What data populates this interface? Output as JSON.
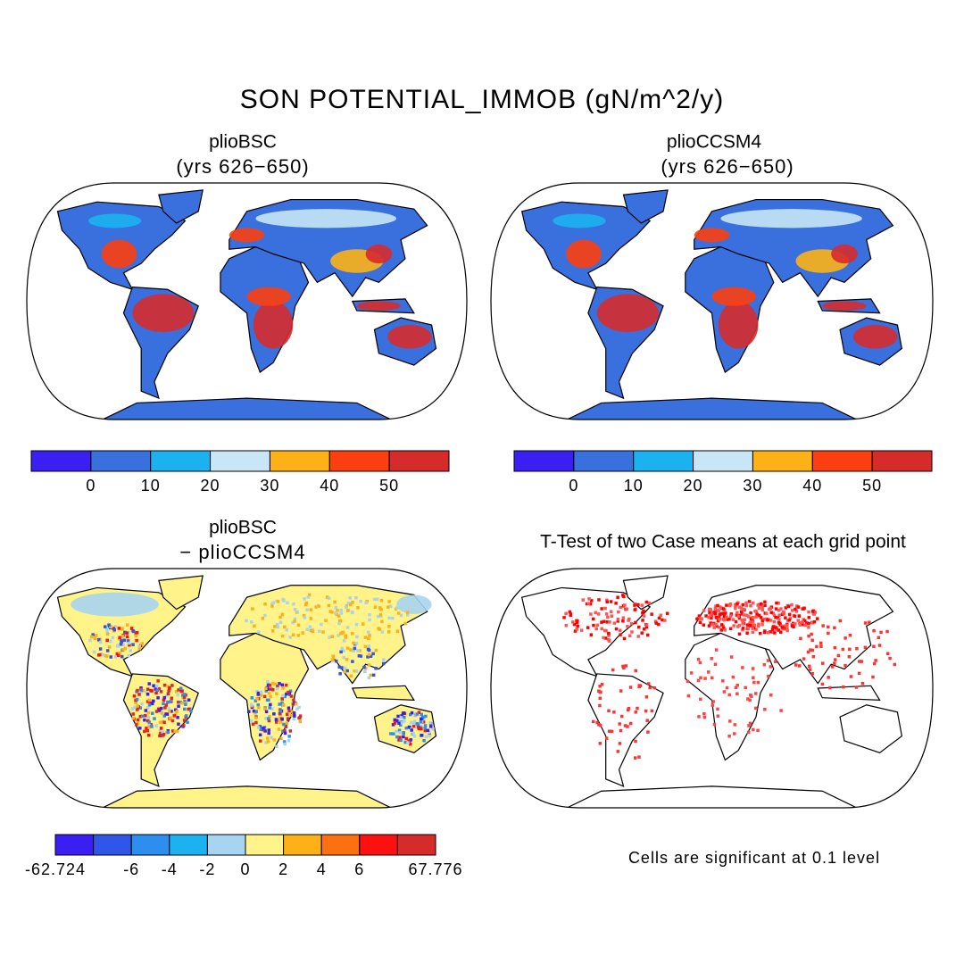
{
  "title": "SON POTENTIAL_IMMOB (gN/m^2/y)",
  "panels": [
    {
      "title": "plioBSC",
      "subtitle": "(yrs 626−650)"
    },
    {
      "title": "plioCCSM4",
      "subtitle": "(yrs 626−650)"
    },
    {
      "title": "plioBSC",
      "subtitle": "− plioCCSM4"
    },
    {
      "title": "T-Test of two Case means at each grid point"
    }
  ],
  "colorbars": [
    {
      "colors": [
        "#3b1ff2",
        "#3a6fde",
        "#1cb2f0",
        "#c8e6f5",
        "#fcb216",
        "#fc3f10",
        "#d62b2b"
      ],
      "ticks": [
        0,
        10,
        20,
        30,
        40,
        50
      ]
    },
    {
      "colors": [
        "#3b1ff2",
        "#3a6fde",
        "#1cb2f0",
        "#c8e6f5",
        "#fcb216",
        "#fc3f10",
        "#d62b2b"
      ],
      "ticks": [
        0,
        10,
        20,
        30,
        40,
        50
      ]
    },
    {
      "colors": [
        "#3b1ff2",
        "#2f56e8",
        "#2d8ef0",
        "#1cb2f0",
        "#a7d4f0",
        "#fff38a",
        "#fcb216",
        "#fc7010",
        "#fc1010",
        "#d62b2b"
      ],
      "ticks": [
        -62.724,
        -6,
        -4,
        -2,
        0,
        2,
        4,
        6,
        67.776
      ],
      "end_labels": true
    }
  ],
  "note": "Cells are significant at 0.1 level"
}
